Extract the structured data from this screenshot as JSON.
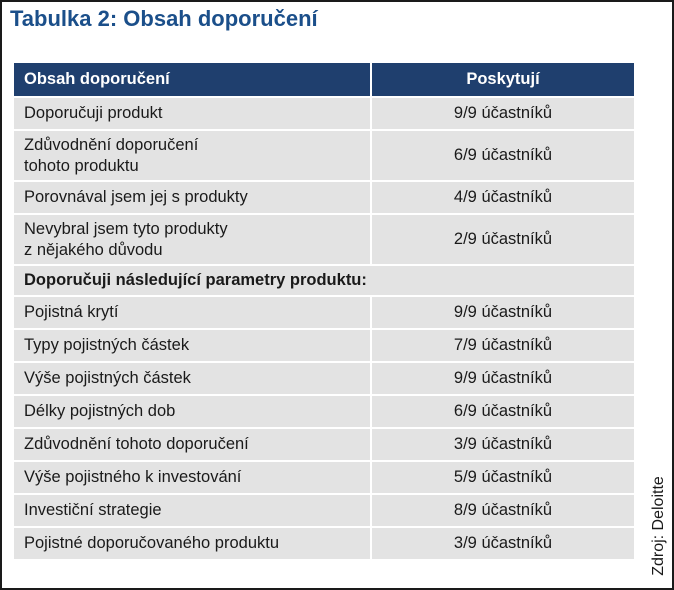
{
  "title": "Tabulka 2: Obsah doporučení",
  "header": {
    "col1": "Obsah doporučení",
    "col2": "Poskytují"
  },
  "rows_top": [
    {
      "lines": [
        "Doporučuji produkt"
      ],
      "value": "9/9 účastníků"
    },
    {
      "lines": [
        "Zdůvodnění doporučení",
        "tohoto produktu"
      ],
      "value": "6/9 účastníků"
    },
    {
      "lines": [
        "Porovnával jsem jej s produkty"
      ],
      "value": "4/9 účastníků"
    },
    {
      "lines": [
        "Nevybral jsem tyto produkty",
        "z nějakého důvodu"
      ],
      "value": "2/9 účastníků"
    }
  ],
  "section_label": "Doporučuji následující parametry produktu:",
  "rows_bottom": [
    {
      "label": "Pojistná krytí",
      "value": "9/9 účastníků"
    },
    {
      "label": "Typy pojistných částek",
      "value": "7/9 účastníků"
    },
    {
      "label": "Výše pojistných částek",
      "value": "9/9 účastníků"
    },
    {
      "label": "Délky pojistných dob",
      "value": "6/9 účastníků"
    },
    {
      "label": "Zdůvodnění tohoto doporučení",
      "value": "3/9 účastníků"
    },
    {
      "label": "Výše pojistného k investování",
      "value": "5/9 účastníků"
    },
    {
      "label": "Investiční strategie",
      "value": "8/9 účastníků"
    },
    {
      "label": "Pojistné doporučovaného produktu",
      "value": "3/9 účastníků"
    }
  ],
  "source": "Zdroj: Deloitte",
  "colors": {
    "title": "#1b4f8a",
    "header_bg": "#1f3f6e",
    "cell_bg": "#e3e3e3"
  }
}
